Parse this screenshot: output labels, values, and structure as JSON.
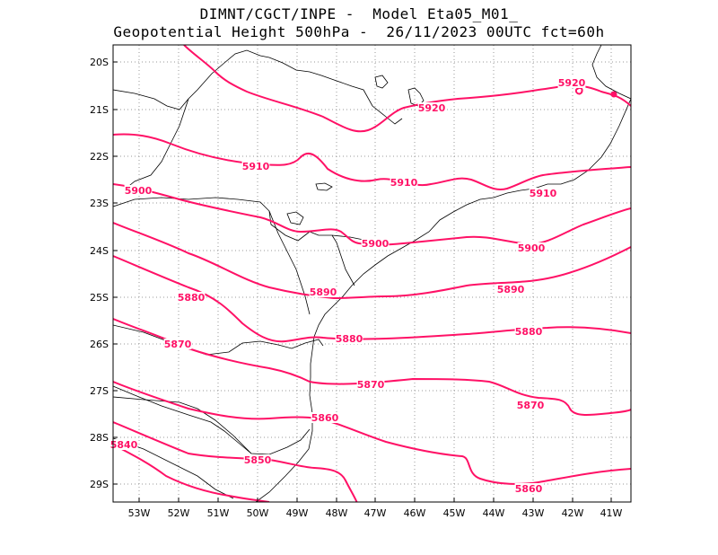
{
  "header": {
    "title_line1": "DIMNT/CGCT/INPE -  Model Eta05_M01_",
    "title_line2": "Geopotential Height 500hPa -  26/11/2023 00UTC fct=60h"
  },
  "axes": {
    "lat_labels": [
      "20S",
      "21S",
      "22S",
      "23S",
      "24S",
      "25S",
      "26S",
      "27S",
      "28S",
      "29S"
    ],
    "lon_labels": [
      "53W",
      "52W",
      "51W",
      "50W",
      "49W",
      "48W",
      "47W",
      "46W",
      "45W",
      "44W",
      "43W",
      "42W",
      "41W"
    ]
  },
  "map": {
    "grid": "dotted",
    "contour_color": "#ff1166",
    "coast_color": "#000000"
  },
  "contours": [
    {
      "name": "5920",
      "labels": [
        "5920",
        "5920"
      ]
    },
    {
      "name": "5910",
      "labels": [
        "5910",
        "5910",
        "5910"
      ]
    },
    {
      "name": "5900",
      "labels": [
        "5900",
        "5900",
        "5900"
      ]
    },
    {
      "name": "5890",
      "labels": [
        "5890",
        "5890"
      ]
    },
    {
      "name": "5880",
      "labels": [
        "5880",
        "5880",
        "5880"
      ]
    },
    {
      "name": "5870",
      "labels": [
        "5870",
        "5870",
        "5870"
      ]
    },
    {
      "name": "5860",
      "labels": [
        "5860",
        "5860"
      ]
    },
    {
      "name": "5850",
      "labels": [
        "5850"
      ]
    },
    {
      "name": "5840",
      "labels": [
        "5840"
      ]
    }
  ]
}
